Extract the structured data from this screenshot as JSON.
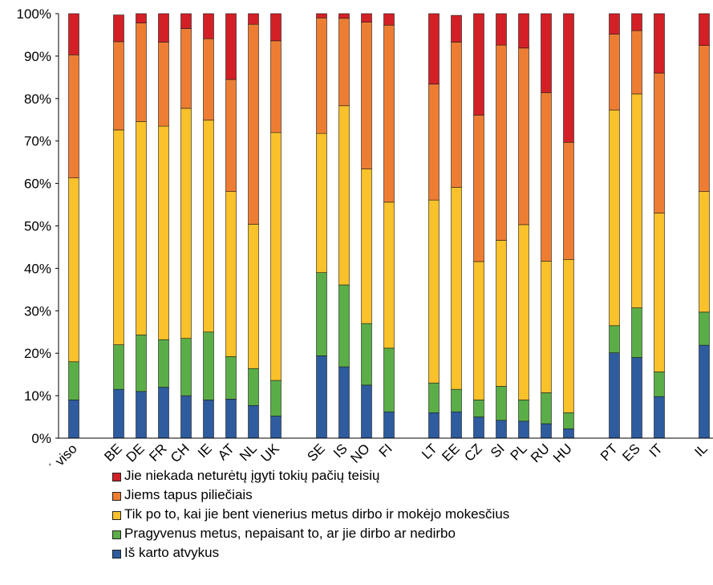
{
  "chart_data": {
    "type": "bar",
    "stacked": true,
    "normalized": true,
    "categories": [
      "Iš viso",
      "BE",
      "DE",
      "FR",
      "CH",
      "IE",
      "AT",
      "NL",
      "UK",
      "SE",
      "IS",
      "NO",
      "FI",
      "LT",
      "EE",
      "CZ",
      "SI",
      "PL",
      "RU",
      "HU",
      "PT",
      "ES",
      "IT",
      "IL"
    ],
    "series": [
      {
        "name": "Iš karto atvykus",
        "color": "#2E5C9E",
        "values": [
          9,
          11.5,
          11,
          12,
          10,
          9,
          9.2,
          7.7,
          5.2,
          19.4,
          16.8,
          12.5,
          6.2,
          6,
          6.2,
          5,
          4.2,
          4,
          3.4,
          2.2,
          20.1,
          19,
          9.8,
          21.9
        ]
      },
      {
        "name": "Pragyvenus metus, nepaisant to, ar jie dirbo ar nedirbo",
        "color": "#5BAE47",
        "values": [
          9,
          10.5,
          13.3,
          11.2,
          13.5,
          16,
          10,
          8.7,
          8.4,
          19.6,
          19.3,
          14.5,
          15,
          7,
          5.3,
          4,
          8,
          5,
          7.3,
          3.8,
          6.4,
          11.7,
          5.8,
          7.8
        ]
      },
      {
        "name": "Tik po to, kai jie bent vienerius metus dirbo ir mokėjo mokesčius",
        "color": "#F9C12A",
        "values": [
          43.3,
          50.6,
          50.3,
          50.3,
          54.2,
          49.9,
          38.9,
          34,
          58.4,
          32.8,
          42.2,
          36.4,
          34.4,
          43.1,
          47.6,
          32.6,
          34.4,
          41.3,
          31,
          36.1,
          50.8,
          50.4,
          37.4,
          28.4
        ]
      },
      {
        "name": "Jiems tapus piliečiais",
        "color": "#EE7D34",
        "values": [
          29,
          20.8,
          23.2,
          19.8,
          18.8,
          19.2,
          26.4,
          47.1,
          21.6,
          27.2,
          20.6,
          34.6,
          41.7,
          27.3,
          34.2,
          34.5,
          46,
          41.6,
          39.7,
          27.6,
          17.9,
          14.9,
          33,
          34.4
        ]
      },
      {
        "name": "Jie niekada neturėtų įgyti tokių pačių teisių",
        "color": "#D32027",
        "values": [
          9.7,
          6.3,
          2.2,
          6.7,
          3.5,
          5.9,
          15.5,
          2.5,
          6.4,
          1,
          1.1,
          2,
          2.7,
          16.6,
          6.3,
          23.9,
          7.4,
          8.1,
          18.6,
          30.3,
          4.8,
          4,
          14,
          7.5
        ]
      }
    ],
    "yticks": [
      "0%",
      "10%",
      "20%",
      "30%",
      "40%",
      "50%",
      "60%",
      "70%",
      "80%",
      "90%",
      "100%"
    ],
    "ylim": [
      0,
      100
    ],
    "title": "",
    "xlabel": "",
    "ylabel": "",
    "grid": false,
    "legend_position": "bottom"
  }
}
